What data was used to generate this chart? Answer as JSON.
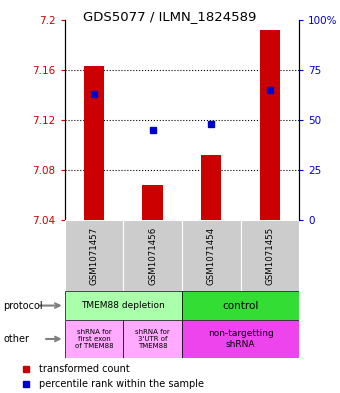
{
  "title": "GDS5077 / ILMN_1824589",
  "samples": [
    "GSM1071457",
    "GSM1071456",
    "GSM1071454",
    "GSM1071455"
  ],
  "bar_values": [
    7.163,
    7.068,
    7.092,
    7.192
  ],
  "bar_bottom": 7.04,
  "percentile_values": [
    63,
    45,
    48,
    65
  ],
  "ylim_left": [
    7.04,
    7.2
  ],
  "ylim_right": [
    0,
    100
  ],
  "yticks_left": [
    7.04,
    7.08,
    7.12,
    7.16,
    7.2
  ],
  "yticks_right": [
    0,
    25,
    50,
    75,
    100
  ],
  "bar_color": "#cc0000",
  "dot_color": "#0000cc",
  "protocol_label": "protocol",
  "other_label": "other",
  "protocol_labels": [
    "TMEM88 depletion",
    "control"
  ],
  "protocol_colors": [
    "#aaffaa",
    "#33dd33"
  ],
  "other_labels": [
    "shRNA for\nfirst exon\nof TMEM88",
    "shRNA for\n3'UTR of\nTMEM88",
    "non-targetting\nshRNA"
  ],
  "other_colors": [
    "#ffaaff",
    "#ffaaff",
    "#ee44ee"
  ],
  "bg_color": "#ffffff",
  "sample_bg": "#cccccc",
  "legend_bar_label": "transformed count",
  "legend_dot_label": "percentile rank within the sample"
}
